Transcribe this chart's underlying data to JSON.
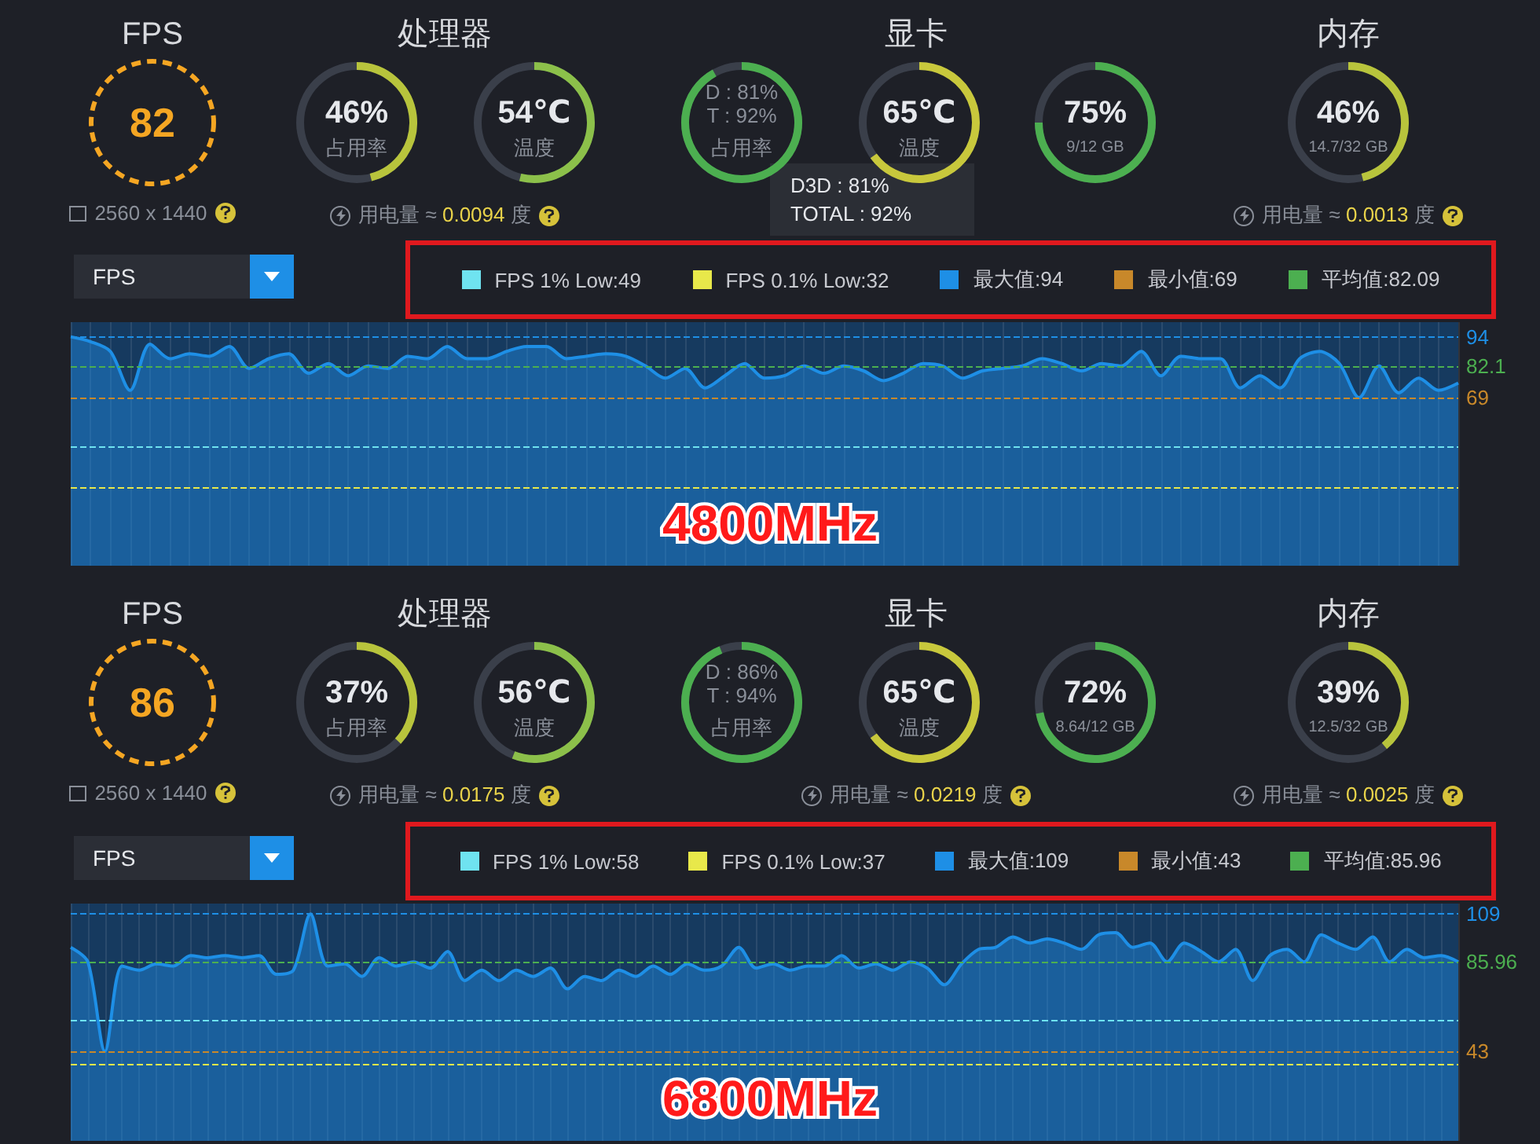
{
  "chart_data": [
    {
      "type": "other",
      "categories": [
        "占用率",
        "温度",
        "占用率",
        "温度",
        "9/12 GB",
        "14.7/32 GB"
      ],
      "values": [
        46,
        54,
        92,
        65,
        75,
        46
      ],
      "value_labels": [
        "46%",
        "54℃",
        "D : 81%\nT : 92%",
        "65℃",
        "75%",
        "46%"
      ],
      "annotations": [
        "FPS",
        "82",
        "2560 x 1440",
        "处理器",
        "显卡",
        "内存",
        "用电量 ≈ 0.0094 度",
        null,
        "用电量 ≈ 0.0013 度",
        "D3D : 81%\nTOTAL : 92%"
      ]
    },
    {
      "type": "area",
      "title": "4800MHz",
      "categories": [
        null,
        null,
        null,
        null,
        null,
        null,
        null,
        null,
        null,
        null,
        null,
        null,
        null,
        null,
        null,
        null,
        null,
        null,
        null,
        null,
        null,
        null,
        null,
        null,
        null,
        null,
        null,
        null,
        null,
        null,
        null,
        null,
        null,
        null,
        null,
        null,
        null,
        null,
        null,
        null,
        null,
        null,
        null,
        null,
        null,
        null,
        null,
        null,
        null,
        null,
        null,
        null,
        null,
        null,
        null,
        null,
        null,
        null,
        null,
        null,
        null,
        null,
        null,
        null,
        null,
        null,
        null,
        null,
        null,
        null,
        null
      ],
      "series": [
        {
          "color": "#1e8fe6",
          "values": [
            94,
            92,
            88,
            72,
            91,
            85,
            87,
            86,
            90,
            81,
            85,
            87,
            79,
            83,
            78,
            82,
            81,
            86,
            85,
            90,
            85,
            85,
            88,
            90,
            90,
            85,
            86,
            87,
            86,
            82,
            77,
            81,
            73,
            78,
            83,
            77,
            78,
            82,
            79,
            82,
            80,
            76,
            79,
            83,
            82,
            77,
            80,
            81,
            82,
            85,
            83,
            80,
            83,
            82,
            88,
            78,
            86,
            85,
            85,
            73,
            78,
            73,
            85,
            88,
            83,
            69,
            82,
            71,
            77,
            72,
            75
          ]
        }
      ],
      "ylim": [
        0,
        100
      ],
      "tick_labels": false,
      "grid": "x",
      "marker": "none",
      "ref_lines": [
        {
          "axis": "y",
          "value": 49,
          "color": "#6fe3f0",
          "line_style": "dashed"
        },
        {
          "axis": "y",
          "value": 32,
          "color": "#e8e84a",
          "line_style": "dashed"
        },
        {
          "axis": "y",
          "value": 94,
          "label": "94",
          "color": "#1e8fe6",
          "line_style": "dashed"
        },
        {
          "axis": "y",
          "value": 69,
          "label": "69",
          "color": "#c8882a",
          "line_style": "dashed"
        },
        {
          "axis": "y",
          "value": 82.09,
          "label": "82.1",
          "color": "#4caf50",
          "line_style": "dashed"
        }
      ],
      "annotations": [
        "FPS",
        "FPS 1% Low:49",
        "FPS 0.1% Low:32",
        "最大值:94",
        "最小值:69",
        "平均值:82.09"
      ]
    },
    {
      "type": "other",
      "categories": [
        "占用率",
        "温度",
        "占用率",
        "温度",
        "8.64/12 GB",
        "12.5/32 GB"
      ],
      "values": [
        37,
        56,
        94,
        65,
        72,
        39
      ],
      "value_labels": [
        "37%",
        "56℃",
        "D : 86%\nT : 94%",
        "65℃",
        "72%",
        "39%"
      ],
      "annotations": [
        "FPS",
        "86",
        "2560 x 1440",
        "处理器",
        "显卡",
        "内存",
        "用电量 ≈ 0.0175 度",
        "用电量 ≈ 0.0219 度",
        "用电量 ≈ 0.0025 度"
      ]
    },
    {
      "type": "area",
      "title": "6800MHz",
      "categories": [
        null,
        null,
        null,
        null,
        null,
        null,
        null,
        null,
        null,
        null,
        null,
        null,
        null,
        null,
        null,
        null,
        null,
        null,
        null,
        null,
        null,
        null,
        null,
        null,
        null,
        null,
        null,
        null,
        null,
        null,
        null,
        null,
        null,
        null,
        null,
        null,
        null,
        null,
        null,
        null,
        null,
        null,
        null,
        null,
        null,
        null,
        null,
        null,
        null,
        null,
        null,
        null,
        null,
        null,
        null,
        null,
        null,
        null,
        null,
        null,
        null,
        null,
        null,
        null,
        null,
        null,
        null,
        null,
        null,
        null,
        null,
        null,
        null,
        null,
        null,
        null,
        null,
        null,
        null,
        null,
        null,
        null
      ],
      "series": [
        {
          "color": "#1e8fe6",
          "values": [
            93,
            86,
            43,
            84,
            82,
            85,
            84,
            89,
            88,
            89,
            88,
            89,
            80,
            82,
            109,
            84,
            85,
            79,
            88,
            84,
            86,
            83,
            91,
            77,
            82,
            77,
            82,
            79,
            83,
            73,
            79,
            77,
            82,
            79,
            84,
            80,
            85,
            82,
            84,
            93,
            83,
            85,
            82,
            84,
            84,
            89,
            83,
            85,
            82,
            86,
            83,
            75,
            85,
            92,
            93,
            98,
            95,
            97,
            95,
            92,
            99,
            100,
            93,
            95,
            86,
            95,
            91,
            86,
            92,
            77,
            89,
            92,
            86,
            99,
            95,
            92,
            98,
            86,
            92,
            88,
            89,
            86
          ]
        }
      ],
      "ylim": [
        0,
        114
      ],
      "tick_labels": false,
      "grid": "x",
      "marker": "none",
      "ref_lines": [
        {
          "axis": "y",
          "value": 58,
          "color": "#6fe3f0",
          "line_style": "dashed"
        },
        {
          "axis": "y",
          "value": 37,
          "color": "#e8e84a",
          "line_style": "dashed"
        },
        {
          "axis": "y",
          "value": 109,
          "label": "109",
          "color": "#1e8fe6",
          "line_style": "dashed"
        },
        {
          "axis": "y",
          "value": 43,
          "label": "43",
          "color": "#c8882a",
          "line_style": "dashed"
        },
        {
          "axis": "y",
          "value": 85.96,
          "label": "85.96",
          "color": "#4caf50",
          "line_style": "dashed"
        }
      ],
      "annotations": [
        "FPS",
        "FPS 1% Low:58",
        "FPS 0.1% Low:37",
        "最大值:109",
        "最小值:43",
        "平均值:85.96"
      ]
    }
  ]
}
